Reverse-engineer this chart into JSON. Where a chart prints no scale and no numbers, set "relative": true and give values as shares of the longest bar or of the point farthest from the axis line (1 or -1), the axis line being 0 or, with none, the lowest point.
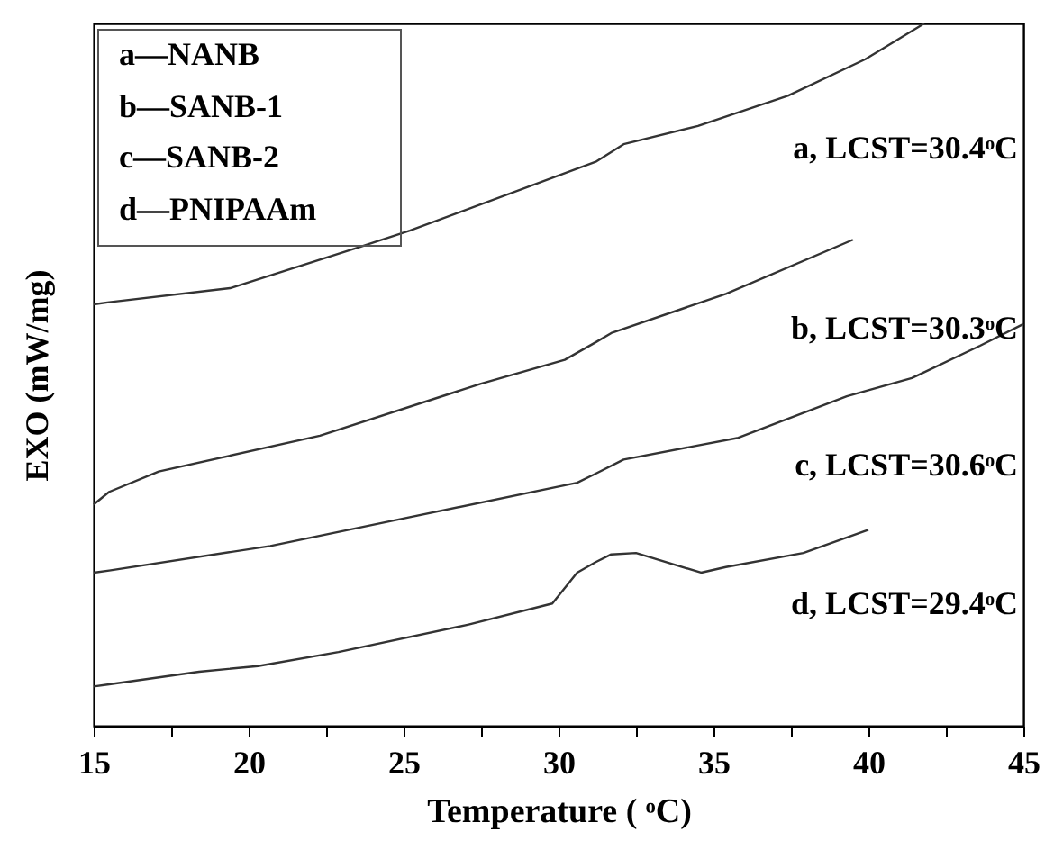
{
  "chart_data": {
    "type": "line",
    "relative": true,
    "xlabel": "Temperature ( ᵒC)",
    "ylabel": "EXO (mW/mg)",
    "grid": false,
    "marker": "none",
    "line_style": "solid",
    "xlim": [
      15,
      45
    ],
    "xticks": [
      15,
      {
        "value": 17.5,
        "label": null
      },
      20,
      {
        "value": 22.5,
        "label": null
      },
      25,
      {
        "value": 27.5,
        "label": null
      },
      30,
      {
        "value": 32.5,
        "label": null
      },
      35,
      {
        "value": 37.5,
        "label": null
      },
      40,
      {
        "value": 42.5,
        "label": null
      },
      45
    ],
    "series": [
      {
        "color": "#333333",
        "x": [
          15,
          15.5,
          19.4,
          23.6,
          25.2,
          31.2,
          32.1,
          34.5,
          37.4,
          39.9,
          41.8
        ],
        "values": [
          0.6,
          0.603,
          0.623,
          0.682,
          0.705,
          0.803,
          0.828,
          0.854,
          0.897,
          0.949,
          1
        ]
      },
      {
        "color": "#333333",
        "x": [
          15,
          15.5,
          17.1,
          22.3,
          27.5,
          30.2,
          31.2,
          31.7,
          35.4,
          39.5
        ],
        "values": [
          0.315,
          0.333,
          0.362,
          0.413,
          0.487,
          0.521,
          0.546,
          0.559,
          0.615,
          0.692
        ]
      },
      {
        "color": "#333333",
        "x": [
          15,
          15.5,
          20.7,
          25.2,
          30.6,
          31.2,
          32.1,
          35.8,
          39.3,
          41.4,
          43.6,
          45
        ],
        "values": [
          0.218,
          0.221,
          0.256,
          0.297,
          0.346,
          0.359,
          0.379,
          0.41,
          0.469,
          0.495,
          0.541,
          0.572
        ]
      },
      {
        "color": "#333333",
        "x": [
          15,
          15.5,
          18.4,
          20.3,
          22.9,
          27.1,
          29.8,
          30.6,
          31.2,
          31.7,
          32.5,
          33.1,
          34.6,
          35.4,
          37.9,
          40
        ],
        "values": [
          0.056,
          0.059,
          0.077,
          0.085,
          0.105,
          0.144,
          0.174,
          0.218,
          0.233,
          0.244,
          0.246,
          0.238,
          0.218,
          0.226,
          0.246,
          0.279
        ]
      }
    ],
    "annotations": [
      "a—NANB",
      "b—SANB-1",
      "c—SANB-2",
      "d—PNIPAAm",
      "a, LCST=30.4ᵒC",
      "b, LCST=30.3ᵒC",
      "c, LCST=30.6ᵒC",
      "d, LCST=29.4ᵒC"
    ]
  }
}
